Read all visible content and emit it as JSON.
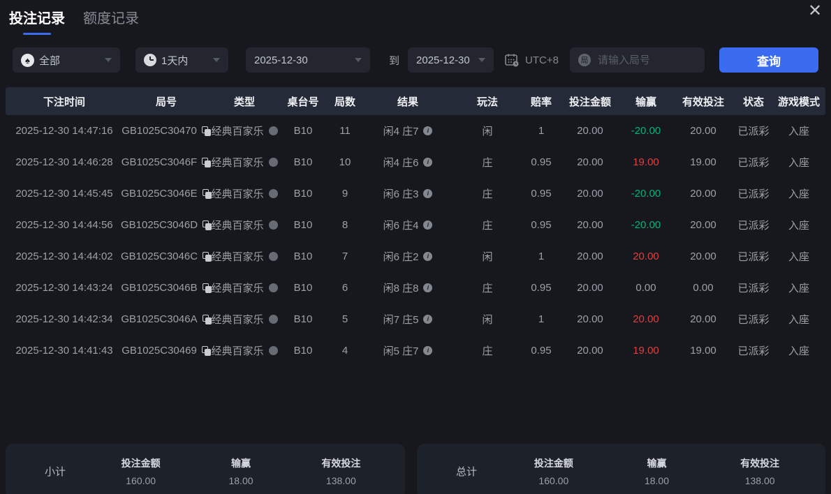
{
  "colors": {
    "accent": "#3b6bef",
    "red": "#e03e3e",
    "green": "#00b578"
  },
  "icons": {
    "close": "✕"
  },
  "tabs": [
    {
      "label": "投注记录",
      "active": true
    },
    {
      "label": "额度记录",
      "active": false
    }
  ],
  "filters": {
    "game_type": {
      "value": "全部"
    },
    "time_range": {
      "value": "1天内"
    },
    "date_from": "2025-12-30",
    "to_label": "到",
    "date_to": "2025-12-30",
    "timezone": "UTC+8",
    "search_placeholder": "请输入局号",
    "query_button": "查询"
  },
  "table": {
    "headers": [
      "下注时间",
      "局号",
      "类型",
      "桌台号",
      "局数",
      "结果",
      "玩法",
      "赔率",
      "投注金额",
      "输赢",
      "有效投注",
      "状态",
      "游戏模式"
    ],
    "rows": [
      {
        "time": "2025-12-30 14:47:16",
        "round_id": "GB1025C30470",
        "type": "经典百家乐",
        "table_no": "B10",
        "round_no": "11",
        "result": "闲4 庄7",
        "play": "闲",
        "odds": "1",
        "bet_amount": "20.00",
        "win_loss": "-20.00",
        "win_loss_color": "green",
        "valid_bet": "20.00",
        "status": "已派彩",
        "mode": "入座"
      },
      {
        "time": "2025-12-30 14:46:28",
        "round_id": "GB1025C3046F",
        "type": "经典百家乐",
        "table_no": "B10",
        "round_no": "10",
        "result": "闲4 庄6",
        "play": "庄",
        "odds": "0.95",
        "bet_amount": "20.00",
        "win_loss": "19.00",
        "win_loss_color": "red",
        "valid_bet": "19.00",
        "status": "已派彩",
        "mode": "入座"
      },
      {
        "time": "2025-12-30 14:45:45",
        "round_id": "GB1025C3046E",
        "type": "经典百家乐",
        "table_no": "B10",
        "round_no": "9",
        "result": "闲6 庄3",
        "play": "庄",
        "odds": "0.95",
        "bet_amount": "20.00",
        "win_loss": "-20.00",
        "win_loss_color": "green",
        "valid_bet": "20.00",
        "status": "已派彩",
        "mode": "入座"
      },
      {
        "time": "2025-12-30 14:44:56",
        "round_id": "GB1025C3046D",
        "type": "经典百家乐",
        "table_no": "B10",
        "round_no": "8",
        "result": "闲6 庄4",
        "play": "庄",
        "odds": "0.95",
        "bet_amount": "20.00",
        "win_loss": "-20.00",
        "win_loss_color": "green",
        "valid_bet": "20.00",
        "status": "已派彩",
        "mode": "入座"
      },
      {
        "time": "2025-12-30 14:44:02",
        "round_id": "GB1025C3046C",
        "type": "经典百家乐",
        "table_no": "B10",
        "round_no": "7",
        "result": "闲6 庄2",
        "play": "闲",
        "odds": "1",
        "bet_amount": "20.00",
        "win_loss": "20.00",
        "win_loss_color": "red",
        "valid_bet": "20.00",
        "status": "已派彩",
        "mode": "入座"
      },
      {
        "time": "2025-12-30 14:43:24",
        "round_id": "GB1025C3046B",
        "type": "经典百家乐",
        "table_no": "B10",
        "round_no": "6",
        "result": "闲8 庄8",
        "play": "庄",
        "odds": "0.95",
        "bet_amount": "20.00",
        "win_loss": "0.00",
        "win_loss_color": "gray",
        "valid_bet": "0.00",
        "status": "已派彩",
        "mode": "入座"
      },
      {
        "time": "2025-12-30 14:42:34",
        "round_id": "GB1025C3046A",
        "type": "经典百家乐",
        "table_no": "B10",
        "round_no": "5",
        "result": "闲7 庄5",
        "play": "闲",
        "odds": "1",
        "bet_amount": "20.00",
        "win_loss": "20.00",
        "win_loss_color": "red",
        "valid_bet": "20.00",
        "status": "已派彩",
        "mode": "入座"
      },
      {
        "time": "2025-12-30 14:41:43",
        "round_id": "GB1025C30469",
        "type": "经典百家乐",
        "table_no": "B10",
        "round_no": "4",
        "result": "闲5 庄7",
        "play": "庄",
        "odds": "0.95",
        "bet_amount": "20.00",
        "win_loss": "19.00",
        "win_loss_color": "red",
        "valid_bet": "19.00",
        "status": "已派彩",
        "mode": "入座"
      }
    ]
  },
  "summary": {
    "subtotal": {
      "label": "小计",
      "items": [
        {
          "label": "投注金额",
          "value": "160.00",
          "color": "gray"
        },
        {
          "label": "输赢",
          "value": "18.00",
          "color": "red"
        },
        {
          "label": "有效投注",
          "value": "138.00",
          "color": "gray"
        }
      ]
    },
    "total": {
      "label": "总计",
      "items": [
        {
          "label": "投注金额",
          "value": "160.00",
          "color": "gray"
        },
        {
          "label": "输赢",
          "value": "18.00",
          "color": "red"
        },
        {
          "label": "有效投注",
          "value": "138.00",
          "color": "gray"
        }
      ]
    }
  }
}
